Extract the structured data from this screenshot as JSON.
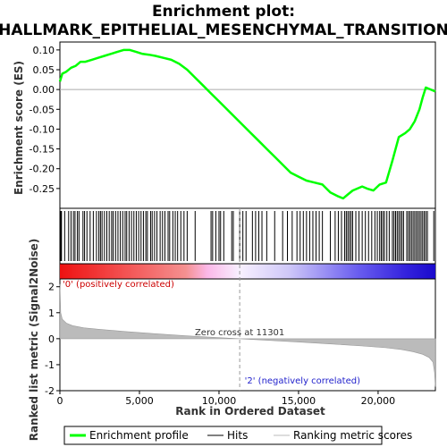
{
  "chart_data": {
    "type": "line",
    "title_line1": "Enrichment plot:",
    "title_line2": "HALLMARK_EPITHELIAL_MESENCHYMAL_TRANSITION",
    "es_panel": {
      "ylabel": "Enrichment score (ES)",
      "ylim": [
        -0.3,
        0.12
      ],
      "yticks": [
        0.1,
        0.05,
        0.0,
        -0.05,
        -0.1,
        -0.15,
        -0.2,
        -0.25
      ],
      "ytick_labels": [
        "0.10",
        "0.05",
        "0.00",
        "-0.05",
        "-0.10",
        "-0.15",
        "-0.20",
        "-0.25"
      ],
      "series_name": "Enrichment profile",
      "color": "#00ff00",
      "x": [
        0,
        150,
        400,
        700,
        1000,
        1300,
        1600,
        2000,
        2400,
        2800,
        3200,
        3600,
        4000,
        4400,
        4800,
        5200,
        5600,
        6000,
        6500,
        7000,
        7500,
        8000,
        8500,
        9000,
        9500,
        10000,
        10500,
        11000,
        11500,
        12000,
        12500,
        13000,
        13500,
        14000,
        14500,
        15000,
        15500,
        16000,
        16500,
        17000,
        17500,
        17800,
        18100,
        18400,
        18700,
        19000,
        19300,
        19700,
        20100,
        20500,
        20900,
        21300,
        21700,
        22000,
        22300,
        22600,
        22800,
        23000,
        23300,
        23600
      ],
      "y": [
        0.02,
        0.04,
        0.045,
        0.055,
        0.06,
        0.07,
        0.07,
        0.075,
        0.08,
        0.085,
        0.09,
        0.095,
        0.1,
        0.1,
        0.095,
        0.09,
        0.088,
        0.085,
        0.08,
        0.075,
        0.065,
        0.05,
        0.03,
        0.01,
        -0.01,
        -0.03,
        -0.05,
        -0.07,
        -0.09,
        -0.11,
        -0.13,
        -0.15,
        -0.17,
        -0.19,
        -0.21,
        -0.22,
        -0.23,
        -0.235,
        -0.24,
        -0.26,
        -0.27,
        -0.275,
        -0.265,
        -0.255,
        -0.25,
        -0.245,
        -0.25,
        -0.255,
        -0.24,
        -0.235,
        -0.18,
        -0.12,
        -0.11,
        -0.1,
        -0.08,
        -0.05,
        -0.02,
        0.005,
        0.0,
        -0.005
      ]
    },
    "hits": [
      30,
      60,
      100,
      300,
      550,
      700,
      850,
      950,
      1100,
      1200,
      1450,
      1550,
      1700,
      1900,
      2100,
      2300,
      2450,
      2550,
      2650,
      2800,
      2950,
      3100,
      3250,
      3350,
      3500,
      3650,
      3800,
      3950,
      4100,
      4200,
      4350,
      4500,
      4650,
      4800,
      4950,
      5100,
      5250,
      5400,
      5500,
      5700,
      5800,
      5950,
      6100,
      6300,
      6450,
      6600,
      6800,
      6900,
      7100,
      7250,
      7400,
      7600,
      7800,
      8000,
      8500,
      9500,
      9600,
      9800,
      10000,
      10100,
      10300,
      10800,
      10900,
      11300,
      11500,
      11700,
      12100,
      12300,
      12500,
      12700,
      13000,
      13500,
      14000,
      14300,
      14600,
      14900,
      15100,
      15300,
      15500,
      15700,
      15900,
      16100,
      16300,
      16500,
      17000,
      17300,
      17500,
      17700,
      17900,
      18000,
      18100,
      18200,
      18300,
      18400,
      18600,
      18800,
      19000,
      19200,
      19400,
      19600,
      19800,
      19950,
      20100,
      20200,
      20300,
      20400,
      20550,
      20700,
      20900,
      21000,
      21100,
      21200,
      21300,
      21400,
      21500,
      21600,
      21800,
      21900,
      22000,
      22100,
      22200,
      22300,
      22400,
      22500,
      22600,
      22700,
      22800,
      22900,
      23000,
      23100,
      23500
    ],
    "ranked_panel": {
      "ylabel": "Ranked list metric (Signal2Noise)",
      "ylim": [
        -2,
        2.3
      ],
      "yticks": [
        2,
        1,
        0,
        -1,
        -2
      ],
      "ytick_labels": [
        "2",
        "1",
        "0",
        "-1",
        "-2"
      ],
      "series_name": "Ranking metric scores",
      "color": "#bbbbbb",
      "x": [
        0,
        50,
        150,
        400,
        800,
        1500,
        2500,
        4000,
        6000,
        8000,
        10000,
        11301,
        13000,
        15000,
        17000,
        19000,
        20500,
        21500,
        22200,
        22800,
        23200,
        23450,
        23550,
        23600
      ],
      "y": [
        2.1,
        1.0,
        0.75,
        0.6,
        0.5,
        0.42,
        0.36,
        0.28,
        0.19,
        0.11,
        0.04,
        0.0,
        -0.06,
        -0.13,
        -0.2,
        -0.28,
        -0.35,
        -0.42,
        -0.5,
        -0.6,
        -0.72,
        -0.9,
        -1.3,
        -1.85
      ]
    },
    "xlabel": "Rank in Ordered Dataset",
    "xlim": [
      0,
      23600
    ],
    "xticks": [
      0,
      5000,
      10000,
      15000,
      20000
    ],
    "xtick_labels": [
      "0",
      "5,000",
      "10,000",
      "15,000",
      "20,000"
    ],
    "zero_cross": 11301,
    "zero_cross_label": "Zero cross at 11301",
    "pos_label": "'0' (positively correlated)",
    "neg_label": "'2' (negatively correlated)",
    "legend": {
      "placement": "bottom",
      "items": [
        "Enrichment profile",
        "Hits",
        "Ranking metric scores"
      ]
    }
  }
}
